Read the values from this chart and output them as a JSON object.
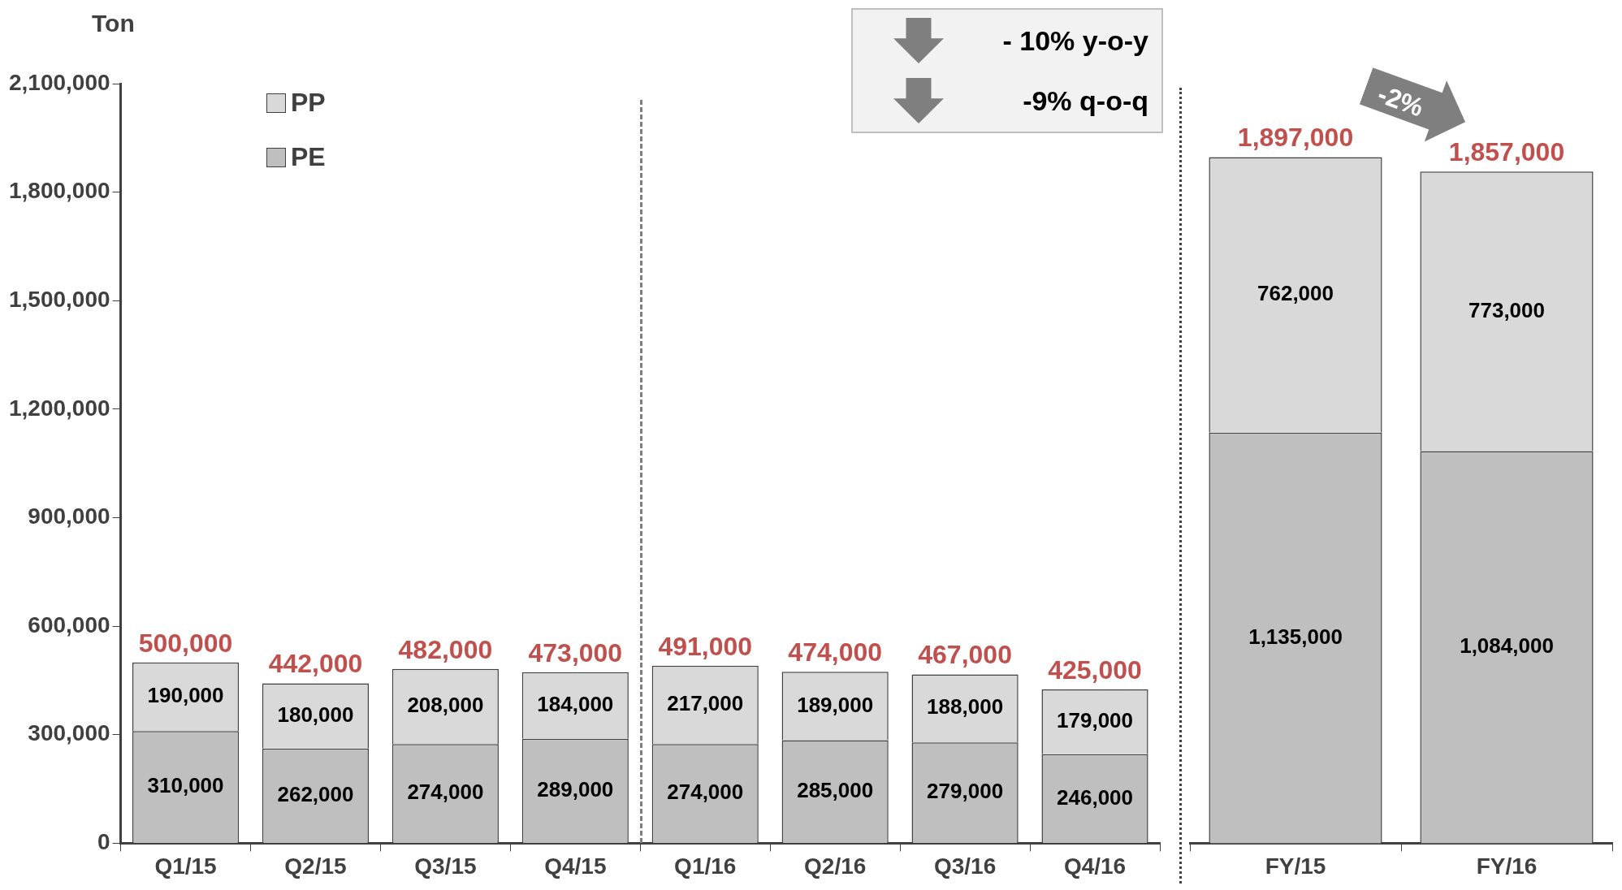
{
  "chart_data": [
    {
      "type": "bar",
      "ylabel": "Ton",
      "stacked": true,
      "legend": "top left",
      "categories": [
        "Q1/15",
        "Q2/15",
        "Q3/15",
        "Q4/15",
        "Q1/16",
        "Q2/16",
        "Q3/16",
        "Q4/16"
      ],
      "series": [
        {
          "name": "PE",
          "color": "#bfbfbf",
          "values": [
            310000,
            262000,
            274000,
            289000,
            274000,
            285000,
            279000,
            246000
          ],
          "value_labels": [
            "310,000",
            "262,000",
            "274,000",
            "289,000",
            "274,000",
            "285,000",
            "279,000",
            "246,000"
          ]
        },
        {
          "name": "PP",
          "color": "#d9d9d9",
          "values": [
            190000,
            180000,
            208000,
            184000,
            217000,
            189000,
            188000,
            179000
          ],
          "value_labels": [
            "190,000",
            "180,000",
            "208,000",
            "184,000",
            "217,000",
            "189,000",
            "188,000",
            "179,000"
          ]
        }
      ],
      "totals": [
        "500,000",
        "442,000",
        "482,000",
        "473,000",
        "491,000",
        "474,000",
        "467,000",
        "425,000"
      ],
      "ylim": [
        0,
        2100000
      ],
      "yticks": [
        {
          "value": 0,
          "label": "0"
        },
        {
          "value": 300000,
          "label": "300,000"
        },
        {
          "value": 600000,
          "label": "600,000"
        },
        {
          "value": 900000,
          "label": "900,000"
        },
        {
          "value": 1200000,
          "label": "1,200,000"
        },
        {
          "value": 1500000,
          "label": "1,500,000"
        },
        {
          "value": 1800000,
          "label": "1,800,000"
        },
        {
          "value": 2100000,
          "label": "2,100,000"
        }
      ],
      "annotations": [
        "- 10% y-o-y",
        "-9% q-o-q"
      ]
    },
    {
      "type": "bar",
      "stacked": true,
      "tick_labels": "x",
      "categories": [
        "FY/15",
        "FY/16"
      ],
      "series": [
        {
          "color": "#bfbfbf",
          "values": [
            1135000,
            1084000
          ],
          "value_labels": [
            "1,135,000",
            "1,084,000"
          ]
        },
        {
          "color": "#d9d9d9",
          "values": [
            762000,
            773000
          ],
          "value_labels": [
            "762,000",
            "773,000"
          ]
        }
      ],
      "totals": [
        "1,897,000",
        "1,857,000"
      ],
      "ylim": [
        0,
        2100000
      ],
      "annotations": [
        "-2%"
      ]
    }
  ]
}
